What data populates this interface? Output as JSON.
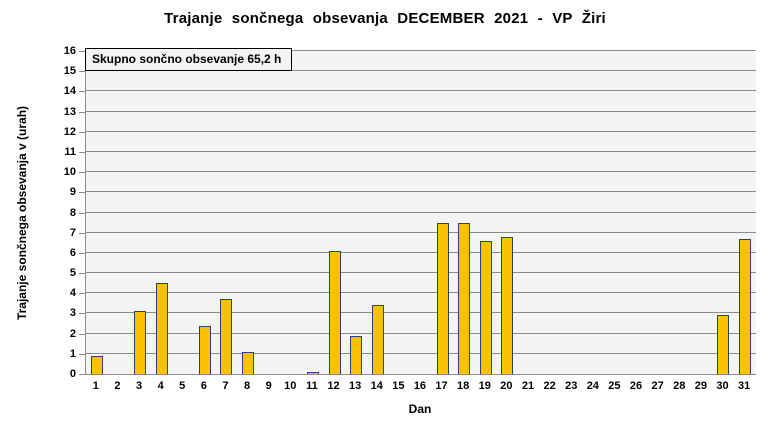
{
  "chart_data": {
    "type": "bar",
    "title": "Trajanje sončnega obsevanja DECEMBER 2021 - VP Žiri",
    "xlabel": "Dan",
    "ylabel": "Trajanje sončnega obsevanja v (urah)",
    "annotation": "Skupno sončno obsevanje 65,2 h",
    "total_hours": "65,2",
    "categories": [
      1,
      2,
      3,
      4,
      5,
      6,
      7,
      8,
      9,
      10,
      11,
      12,
      13,
      14,
      15,
      16,
      17,
      18,
      19,
      20,
      21,
      22,
      23,
      24,
      25,
      26,
      27,
      28,
      29,
      30,
      31
    ],
    "values": [
      0.9,
      0,
      3.1,
      4.5,
      0,
      2.4,
      3.7,
      1.1,
      0,
      0,
      0.1,
      6.1,
      1.9,
      3.4,
      0,
      0,
      7.5,
      7.5,
      6.6,
      6.8,
      0,
      0,
      0,
      0,
      0,
      0,
      0,
      0,
      0,
      2.9,
      6.7
    ],
    "ylim": [
      0,
      16
    ],
    "ytick_interval": 1,
    "grid": "horizontal",
    "legend": "none",
    "colors": {
      "bar_fill": "#FCC200",
      "bar_border": "#24466B",
      "gridline": "#8c8c8c",
      "plot_background": "#f4f4f5",
      "page_background": "#ffffff",
      "text": "#000000"
    }
  }
}
